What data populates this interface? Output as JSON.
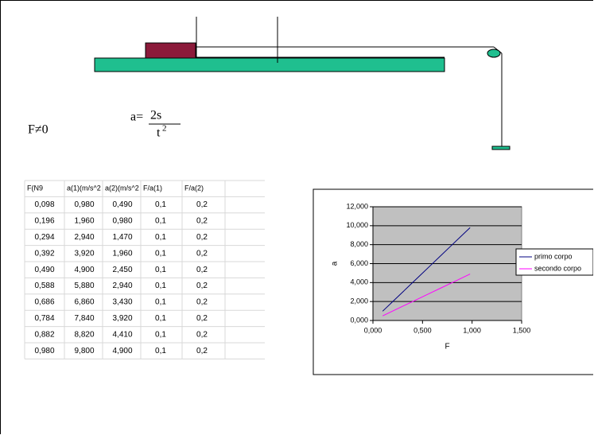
{
  "condition": "F≠0",
  "formula": {
    "lhs": "a=",
    "numerator": "2s",
    "denominator": "t",
    "exponent": "2"
  },
  "table": {
    "header": [
      "F(N9",
      "a(1)(m/s^2",
      "a(2)(m/s^2",
      "F/a(1)",
      "F/a(2)"
    ],
    "rows": [
      [
        "0,098",
        "0,980",
        "0,490",
        "0,1",
        "0,2"
      ],
      [
        "0,196",
        "1,960",
        "0,980",
        "0,1",
        "0,2"
      ],
      [
        "0,294",
        "2,940",
        "1,470",
        "0,1",
        "0,2"
      ],
      [
        "0,392",
        "3,920",
        "1,960",
        "0,1",
        "0,2"
      ],
      [
        "0,490",
        "4,900",
        "2,450",
        "0,1",
        "0,2"
      ],
      [
        "0,588",
        "5,880",
        "2,940",
        "0,1",
        "0,2"
      ],
      [
        "0,686",
        "6,860",
        "3,430",
        "0,1",
        "0,2"
      ],
      [
        "0,784",
        "7,840",
        "3,920",
        "0,1",
        "0,2"
      ],
      [
        "0,882",
        "8,820",
        "4,410",
        "0,1",
        "0,2"
      ],
      [
        "0,980",
        "9,800",
        "4,900",
        "0,1",
        "0,2"
      ]
    ]
  },
  "chart": {
    "type": "line",
    "x_label": "F",
    "y_label": "a",
    "x": [
      0.098,
      0.196,
      0.294,
      0.392,
      0.49,
      0.588,
      0.686,
      0.784,
      0.882,
      0.98
    ],
    "series": [
      {
        "name": "primo corpo",
        "color": "#000080",
        "values": [
          0.98,
          1.96,
          2.94,
          3.92,
          4.9,
          5.88,
          6.86,
          7.84,
          8.82,
          9.8
        ]
      },
      {
        "name": "secondo corpo",
        "color": "#ff00ff",
        "values": [
          0.49,
          0.98,
          1.47,
          1.96,
          2.45,
          2.94,
          3.43,
          3.92,
          4.41,
          4.9
        ]
      }
    ],
    "xlim": [
      0,
      1.5
    ],
    "xticks": [
      {
        "value": 0,
        "label": "0,000"
      },
      {
        "value": 0.5,
        "label": "0,500"
      },
      {
        "value": 1,
        "label": "1,000"
      },
      {
        "value": 1.5,
        "label": "1,500"
      }
    ],
    "ylim": [
      0,
      12
    ],
    "yticks": [
      {
        "value": 0,
        "label": "0,000"
      },
      {
        "value": 2,
        "label": "2,000"
      },
      {
        "value": 4,
        "label": "4,000"
      },
      {
        "value": 6,
        "label": "6,000"
      },
      {
        "value": 8,
        "label": "8,000"
      },
      {
        "value": 10,
        "label": "10,000"
      },
      {
        "value": 12,
        "label": "12,000"
      }
    ],
    "grid": true,
    "plot_background": "#c0c0c0"
  }
}
